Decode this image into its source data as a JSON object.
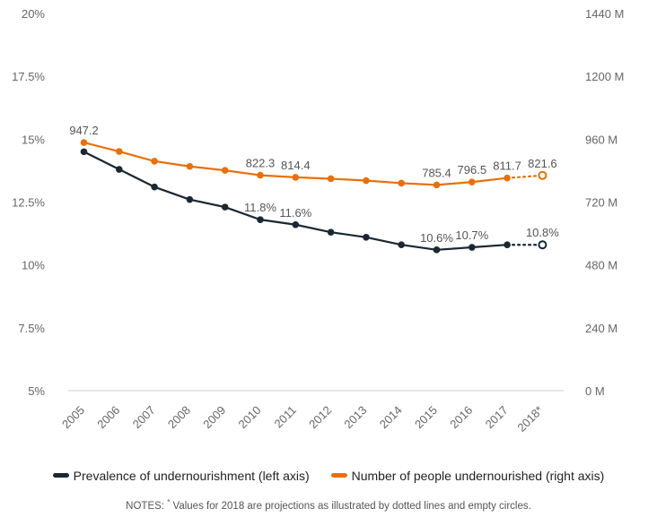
{
  "chart_data": {
    "type": "line",
    "categories": [
      "2005",
      "2006",
      "2007",
      "2008",
      "2009",
      "2010",
      "2011",
      "2012",
      "2013",
      "2014",
      "2015",
      "2016",
      "2017",
      "2018*"
    ],
    "projected_from_index": 13,
    "series": [
      {
        "name": "Prevalence of undernourishment (left axis)",
        "axis": "left",
        "color": "#1b2733",
        "values": [
          14.5,
          13.8,
          13.1,
          12.6,
          12.3,
          11.8,
          11.6,
          11.3,
          11.1,
          10.8,
          10.6,
          10.7,
          10.8,
          10.8
        ],
        "labels": {
          "5": "11.8%",
          "6": "11.6%",
          "10": "10.6%",
          "11": "10.7%",
          "13": "10.8%"
        }
      },
      {
        "name": "Number of people undernourished (right axis)",
        "axis": "right",
        "color": "#e8700a",
        "values": [
          947.2,
          913.0,
          876.0,
          856.0,
          841.0,
          822.3,
          814.4,
          809.0,
          802.0,
          792.0,
          785.4,
          796.5,
          811.7,
          821.6
        ],
        "labels": {
          "0": "947.2",
          "5": "822.3",
          "6": "814.4",
          "10": "785.4",
          "11": "796.5",
          "12": "811.7",
          "13": "821.6"
        }
      }
    ],
    "left_axis": {
      "ticks": [
        "5%",
        "7.5%",
        "10%",
        "12.5%",
        "15%",
        "17.5%",
        "20%"
      ],
      "min": 5,
      "max": 20
    },
    "right_axis": {
      "ticks": [
        "0 M",
        "240 M",
        "480 M",
        "720 M",
        "960 M",
        "1200 M",
        "1440 M"
      ],
      "min": 0,
      "max": 1440
    },
    "grid": false,
    "legend_position": "bottom"
  },
  "legend": [
    {
      "label": "Prevalence of undernourishment (left axis)",
      "color": "#1b2733"
    },
    {
      "label": "Number of people undernourished (right axis)",
      "color": "#e8700a"
    }
  ],
  "notes": {
    "prefix": "NOTES: ",
    "marker": "*",
    "text": " Values for 2018 are projections as illustrated by dotted lines and empty circles."
  }
}
